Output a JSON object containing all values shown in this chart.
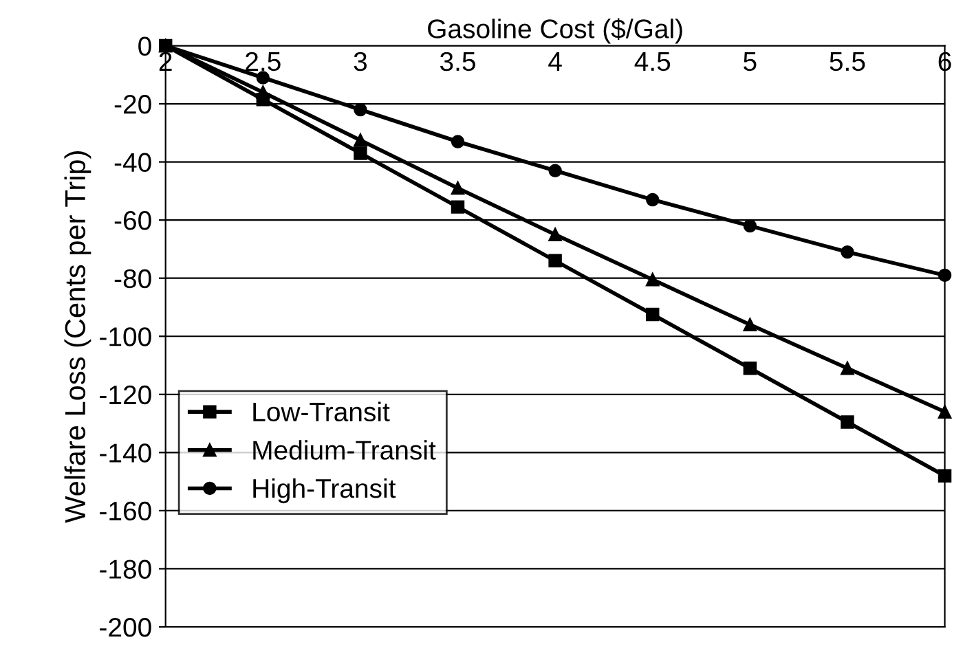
{
  "chart_data": {
    "type": "line",
    "xlabel": "Gasoline Cost ($/Gal)",
    "ylabel": "Welfare Loss (Cents per Trip)",
    "x": [
      2,
      2.5,
      3,
      3.5,
      4,
      4.5,
      5,
      5.5,
      6
    ],
    "xlim": [
      2,
      6
    ],
    "xticks": [
      2,
      2.5,
      3,
      3.5,
      4,
      4.5,
      5,
      5.5,
      6
    ],
    "ylim": [
      -200,
      0
    ],
    "yticks": [
      -200,
      -180,
      -160,
      -140,
      -120,
      -100,
      -80,
      -60,
      -40,
      -20,
      0
    ],
    "grid": "y",
    "legend": "left",
    "line_style": "solid",
    "series": [
      {
        "name": "Low-Transit",
        "color": "#000000",
        "marker": "square",
        "values": [
          0,
          -18.5,
          -37,
          -55.5,
          -74,
          -92.5,
          -111,
          -129.5,
          -148
        ]
      },
      {
        "name": "Medium-Transit",
        "color": "#000000",
        "marker": "triangle",
        "values": [
          0,
          -16,
          -32.5,
          -49,
          -65,
          -80.5,
          -96,
          -111,
          -126
        ]
      },
      {
        "name": "High-Transit",
        "color": "#000000",
        "marker": "circle",
        "values": [
          0,
          -11,
          -22,
          -33,
          -43,
          -53,
          -62,
          -71,
          -79
        ]
      }
    ]
  }
}
